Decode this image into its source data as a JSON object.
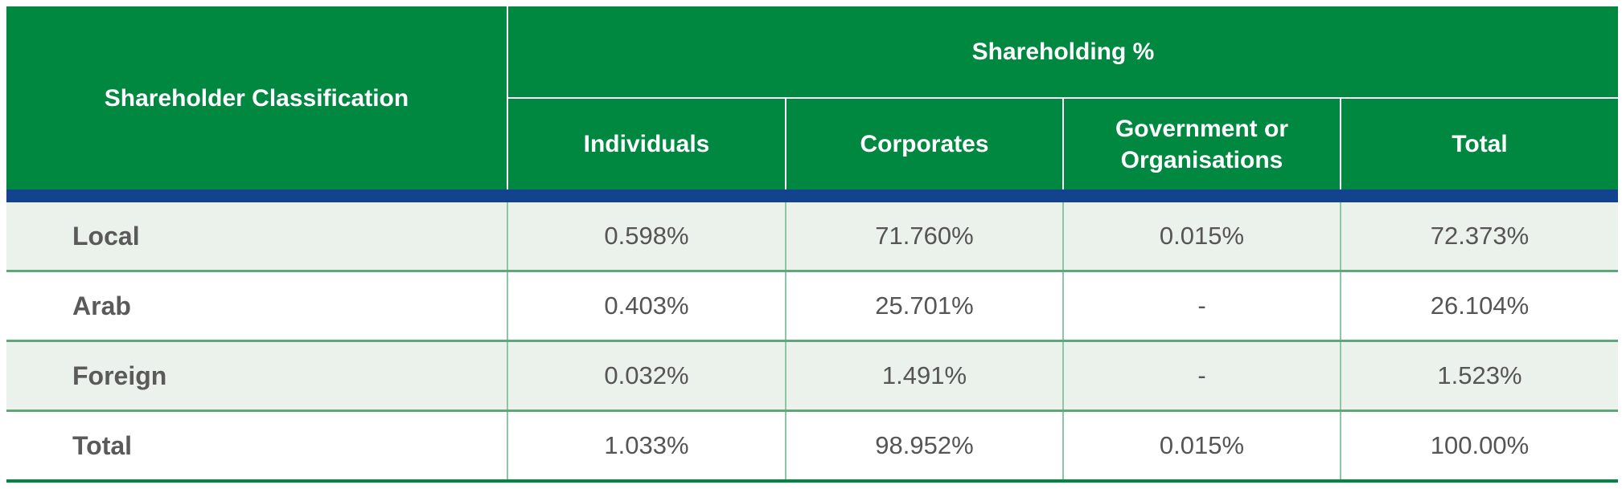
{
  "header": {
    "classification_label": "Shareholder Classification",
    "group_label": "Shareholding %",
    "columns": [
      "Individuals",
      "Corporates",
      "Government or\nOrganisations",
      "Total"
    ]
  },
  "rows": [
    {
      "label": "Local",
      "values": [
        "0.598%",
        "71.760%",
        "0.015%",
        "72.373%"
      ]
    },
    {
      "label": "Arab",
      "values": [
        "0.403%",
        "25.701%",
        "-",
        "26.104%"
      ]
    },
    {
      "label": "Foreign",
      "values": [
        "0.032%",
        "1.491%",
        "-",
        "1.523%"
      ]
    },
    {
      "label": "Total",
      "values": [
        "1.033%",
        "98.952%",
        "0.015%",
        "100.00%"
      ]
    }
  ],
  "colors": {
    "header_green": "#008841",
    "divider_blue": "#13428f",
    "shaded_row": "#ebf1eb",
    "row_border": "#5fa67a"
  }
}
